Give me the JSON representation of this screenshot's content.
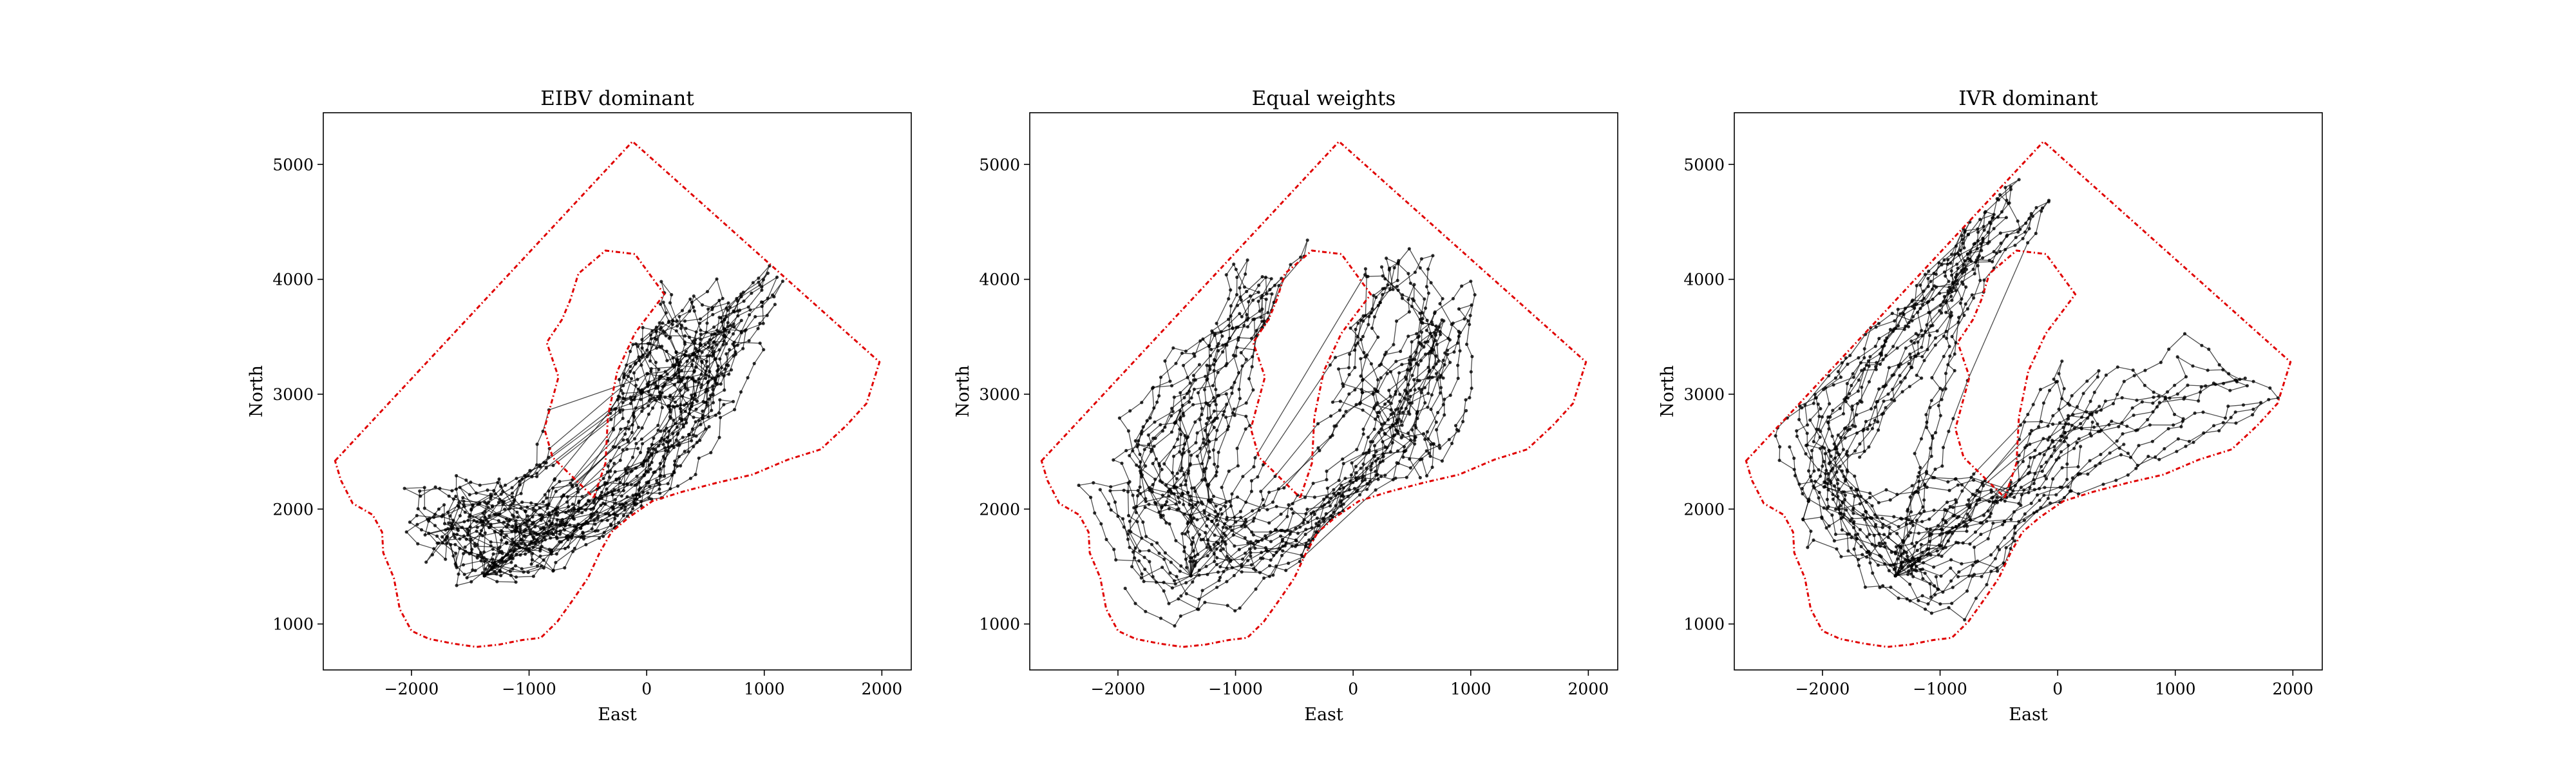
{
  "chart_data": [
    {
      "type": "line",
      "title": "EIBV dominant",
      "xlabel": "East",
      "ylabel": "North",
      "xlim": [
        -2750,
        2250
      ],
      "ylim": [
        600,
        5450
      ],
      "xticks": [
        -2000,
        -1000,
        0,
        1000,
        2000
      ],
      "yticks": [
        1000,
        2000,
        3000,
        4000,
        5000
      ],
      "grid": false,
      "boundary": {
        "outer": [
          [
            -2650,
            2420
          ],
          [
            -120,
            5200
          ],
          [
            1980,
            3280
          ],
          [
            1870,
            2920
          ],
          [
            1700,
            2730
          ],
          [
            1480,
            2520
          ],
          [
            1200,
            2430
          ],
          [
            900,
            2300
          ],
          [
            600,
            2230
          ],
          [
            300,
            2150
          ],
          [
            50,
            2070
          ],
          [
            -150,
            1930
          ],
          [
            -300,
            1800
          ],
          [
            -400,
            1620
          ],
          [
            -500,
            1400
          ],
          [
            -620,
            1220
          ],
          [
            -760,
            1020
          ],
          [
            -900,
            880
          ],
          [
            -1060,
            860
          ],
          [
            -1260,
            820
          ],
          [
            -1450,
            800
          ],
          [
            -1650,
            830
          ],
          [
            -1850,
            870
          ],
          [
            -2000,
            940
          ],
          [
            -2100,
            1130
          ],
          [
            -2150,
            1400
          ],
          [
            -2240,
            1620
          ],
          [
            -2250,
            1800
          ],
          [
            -2330,
            1950
          ],
          [
            -2500,
            2050
          ],
          [
            -2600,
            2250
          ],
          [
            -2650,
            2420
          ]
        ],
        "inner": [
          [
            -450,
            2100
          ],
          [
            -350,
            2400
          ],
          [
            -330,
            2800
          ],
          [
            -250,
            3200
          ],
          [
            -100,
            3530
          ],
          [
            150,
            3870
          ],
          [
            -100,
            4220
          ],
          [
            -350,
            4250
          ],
          [
            -580,
            4050
          ],
          [
            -650,
            3820
          ],
          [
            -720,
            3650
          ],
          [
            -850,
            3450
          ],
          [
            -750,
            3150
          ],
          [
            -870,
            2700
          ],
          [
            -800,
            2450
          ],
          [
            -650,
            2300
          ],
          [
            -450,
            2100
          ]
        ]
      },
      "trajectories": {
        "start": [
          -1380,
          1420
        ],
        "waypoints": [
          [
            -1300,
            1850
          ],
          [
            -900,
            1950
          ],
          [
            -450,
            2050
          ],
          [
            -150,
            2800
          ],
          [
            200,
            3400
          ],
          [
            500,
            3700
          ],
          [
            800,
            3600
          ],
          [
            550,
            2800
          ],
          [
            100,
            2200
          ],
          [
            -500,
            1700
          ],
          [
            -1000,
            1600
          ],
          [
            -1400,
            1600
          ],
          [
            -1700,
            1700
          ],
          [
            -1800,
            2000
          ],
          [
            -1400,
            2050
          ],
          [
            -800,
            1700
          ],
          [
            0,
            2300
          ],
          [
            500,
            3200
          ],
          [
            -100,
            3800
          ],
          [
            -200,
            3200
          ],
          [
            400,
            3000
          ],
          [
            900,
            3900
          ]
        ],
        "spread": 260,
        "count": 16
      }
    },
    {
      "type": "line",
      "title": "Equal weights",
      "xlabel": "East",
      "ylabel": "North",
      "xlim": [
        -2750,
        2250
      ],
      "ylim": [
        600,
        5450
      ],
      "xticks": [
        -2000,
        -1000,
        0,
        1000,
        2000
      ],
      "yticks": [
        1000,
        2000,
        3000,
        4000,
        5000
      ],
      "grid": false,
      "boundary": {
        "outer": [
          [
            -2650,
            2420
          ],
          [
            -120,
            5200
          ],
          [
            1980,
            3280
          ],
          [
            1870,
            2920
          ],
          [
            1700,
            2730
          ],
          [
            1480,
            2520
          ],
          [
            1200,
            2430
          ],
          [
            900,
            2300
          ],
          [
            600,
            2230
          ],
          [
            300,
            2150
          ],
          [
            50,
            2070
          ],
          [
            -150,
            1930
          ],
          [
            -300,
            1800
          ],
          [
            -400,
            1620
          ],
          [
            -500,
            1400
          ],
          [
            -620,
            1220
          ],
          [
            -760,
            1020
          ],
          [
            -900,
            880
          ],
          [
            -1060,
            860
          ],
          [
            -1260,
            820
          ],
          [
            -1450,
            800
          ],
          [
            -1650,
            830
          ],
          [
            -1850,
            870
          ],
          [
            -2000,
            940
          ],
          [
            -2100,
            1130
          ],
          [
            -2150,
            1400
          ],
          [
            -2240,
            1620
          ],
          [
            -2250,
            1800
          ],
          [
            -2330,
            1950
          ],
          [
            -2500,
            2050
          ],
          [
            -2600,
            2250
          ],
          [
            -2650,
            2420
          ]
        ],
        "inner": [
          [
            -450,
            2100
          ],
          [
            -350,
            2400
          ],
          [
            -330,
            2800
          ],
          [
            -250,
            3200
          ],
          [
            -100,
            3530
          ],
          [
            150,
            3870
          ],
          [
            -100,
            4220
          ],
          [
            -350,
            4250
          ],
          [
            -580,
            4050
          ],
          [
            -650,
            3820
          ],
          [
            -720,
            3650
          ],
          [
            -850,
            3450
          ],
          [
            -750,
            3150
          ],
          [
            -870,
            2700
          ],
          [
            -800,
            2450
          ],
          [
            -650,
            2300
          ],
          [
            -450,
            2100
          ]
        ]
      },
      "trajectories": {
        "start": [
          -1380,
          1420
        ],
        "waypoints": [
          [
            -1800,
            1900
          ],
          [
            -1900,
            2500
          ],
          [
            -1400,
            3100
          ],
          [
            -900,
            3700
          ],
          [
            -700,
            4100
          ],
          [
            -1200,
            3000
          ],
          [
            -1500,
            2300
          ],
          [
            -800,
            1700
          ],
          [
            -200,
            1800
          ],
          [
            300,
            2600
          ],
          [
            700,
            3500
          ],
          [
            400,
            3900
          ],
          [
            0,
            3200
          ],
          [
            500,
            2600
          ],
          [
            800,
            3000
          ],
          [
            1000,
            3800
          ],
          [
            -400,
            2200
          ],
          [
            -1200,
            1300
          ],
          [
            -1800,
            1500
          ],
          [
            -2000,
            2200
          ]
        ],
        "spread": 320,
        "count": 16
      }
    },
    {
      "type": "line",
      "title": "IVR dominant",
      "xlabel": "East",
      "ylabel": "North",
      "xlim": [
        -2750,
        2250
      ],
      "ylim": [
        600,
        5450
      ],
      "xticks": [
        -2000,
        -1000,
        0,
        1000,
        2000
      ],
      "yticks": [
        1000,
        2000,
        3000,
        4000,
        5000
      ],
      "grid": false,
      "boundary": {
        "outer": [
          [
            -2650,
            2420
          ],
          [
            -120,
            5200
          ],
          [
            1980,
            3280
          ],
          [
            1870,
            2920
          ],
          [
            1700,
            2730
          ],
          [
            1480,
            2520
          ],
          [
            1200,
            2430
          ],
          [
            900,
            2300
          ],
          [
            600,
            2230
          ],
          [
            300,
            2150
          ],
          [
            50,
            2070
          ],
          [
            -150,
            1930
          ],
          [
            -300,
            1800
          ],
          [
            -400,
            1620
          ],
          [
            -500,
            1400
          ],
          [
            -620,
            1220
          ],
          [
            -760,
            1020
          ],
          [
            -900,
            880
          ],
          [
            -1060,
            860
          ],
          [
            -1260,
            820
          ],
          [
            -1450,
            800
          ],
          [
            -1650,
            830
          ],
          [
            -1850,
            870
          ],
          [
            -2000,
            940
          ],
          [
            -2100,
            1130
          ],
          [
            -2150,
            1400
          ],
          [
            -2240,
            1620
          ],
          [
            -2250,
            1800
          ],
          [
            -2330,
            1950
          ],
          [
            -2500,
            2050
          ],
          [
            -2600,
            2250
          ],
          [
            -2650,
            2420
          ]
        ],
        "inner": [
          [
            -450,
            2100
          ],
          [
            -350,
            2400
          ],
          [
            -330,
            2800
          ],
          [
            -250,
            3200
          ],
          [
            -100,
            3530
          ],
          [
            150,
            3870
          ],
          [
            -100,
            4220
          ],
          [
            -350,
            4250
          ],
          [
            -580,
            4050
          ],
          [
            -650,
            3820
          ],
          [
            -720,
            3650
          ],
          [
            -850,
            3450
          ],
          [
            -750,
            3150
          ],
          [
            -870,
            2700
          ],
          [
            -800,
            2450
          ],
          [
            -650,
            2300
          ],
          [
            -450,
            2100
          ]
        ]
      },
      "trajectories": {
        "start": [
          -1380,
          1420
        ],
        "waypoints": [
          [
            -2000,
            2000
          ],
          [
            -2100,
            2800
          ],
          [
            -1600,
            3500
          ],
          [
            -1000,
            4000
          ],
          [
            -600,
            4400
          ],
          [
            -400,
            4600
          ],
          [
            -1300,
            3300
          ],
          [
            -1800,
            2400
          ],
          [
            -1300,
            1500
          ],
          [
            -700,
            1300
          ],
          [
            -300,
            1900
          ],
          [
            300,
            2500
          ],
          [
            800,
            3200
          ],
          [
            1300,
            3400
          ],
          [
            1600,
            3100
          ],
          [
            900,
            2700
          ],
          [
            200,
            3000
          ],
          [
            -200,
            2400
          ],
          [
            -900,
            2000
          ],
          [
            -1500,
            1800
          ]
        ],
        "spread": 340,
        "count": 16
      }
    }
  ]
}
